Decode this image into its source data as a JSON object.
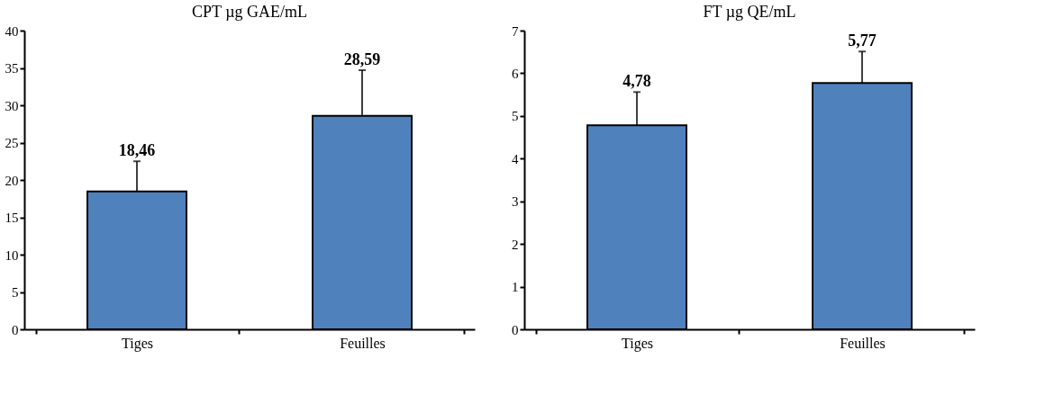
{
  "chart_data": [
    {
      "type": "bar",
      "title": "CPT µg GAE/mL",
      "categories": [
        "Tiges",
        "Feuilles"
      ],
      "values": [
        18.46,
        28.59
      ],
      "color": "#4f81bd",
      "errors": [
        [
          18.46,
          22.5
        ],
        [
          28.59,
          34.7
        ]
      ],
      "value_labels": [
        "18,46",
        "28,59"
      ],
      "ylim": [
        0,
        40
      ],
      "yticks": [
        0,
        5,
        10,
        15,
        20,
        25,
        30,
        35,
        40
      ],
      "grid": false,
      "legend": false
    },
    {
      "type": "bar",
      "title": "FT µg QE/mL",
      "categories": [
        "Tiges",
        "Feuilles"
      ],
      "values": [
        4.78,
        5.77
      ],
      "color": "#4f81bd",
      "errors": [
        [
          4.78,
          5.56
        ],
        [
          5.77,
          6.51
        ]
      ],
      "value_labels": [
        "4,78",
        "5,77"
      ],
      "ylim": [
        0,
        7
      ],
      "yticks": [
        0,
        1,
        2,
        3,
        4,
        5,
        6,
        7
      ],
      "grid": false,
      "legend": false
    }
  ]
}
